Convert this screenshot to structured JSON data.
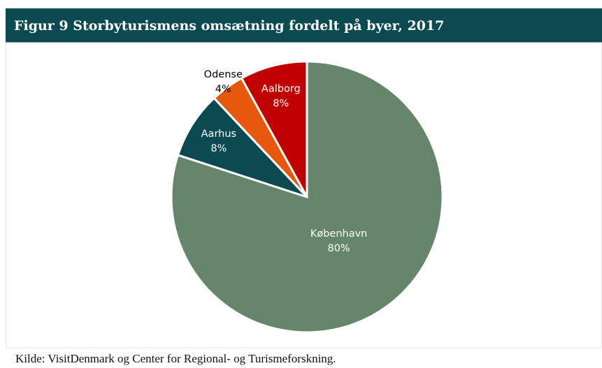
{
  "chart_data": {
    "type": "pie",
    "title": "Figur 9 Storbyturismens omsætning fordelt på byer, 2017",
    "source": "Kilde: VisitDenmark og Center for Regional- og Turismeforskning.",
    "categories": [
      "København",
      "Aarhus",
      "Odense",
      "Aalborg"
    ],
    "values": [
      80,
      8,
      4,
      8
    ],
    "value_labels": [
      "80%",
      "8%",
      "4%",
      "8%"
    ],
    "colors": [
      "#65866a",
      "#0b4a50",
      "#e8580c",
      "#c00000"
    ]
  }
}
